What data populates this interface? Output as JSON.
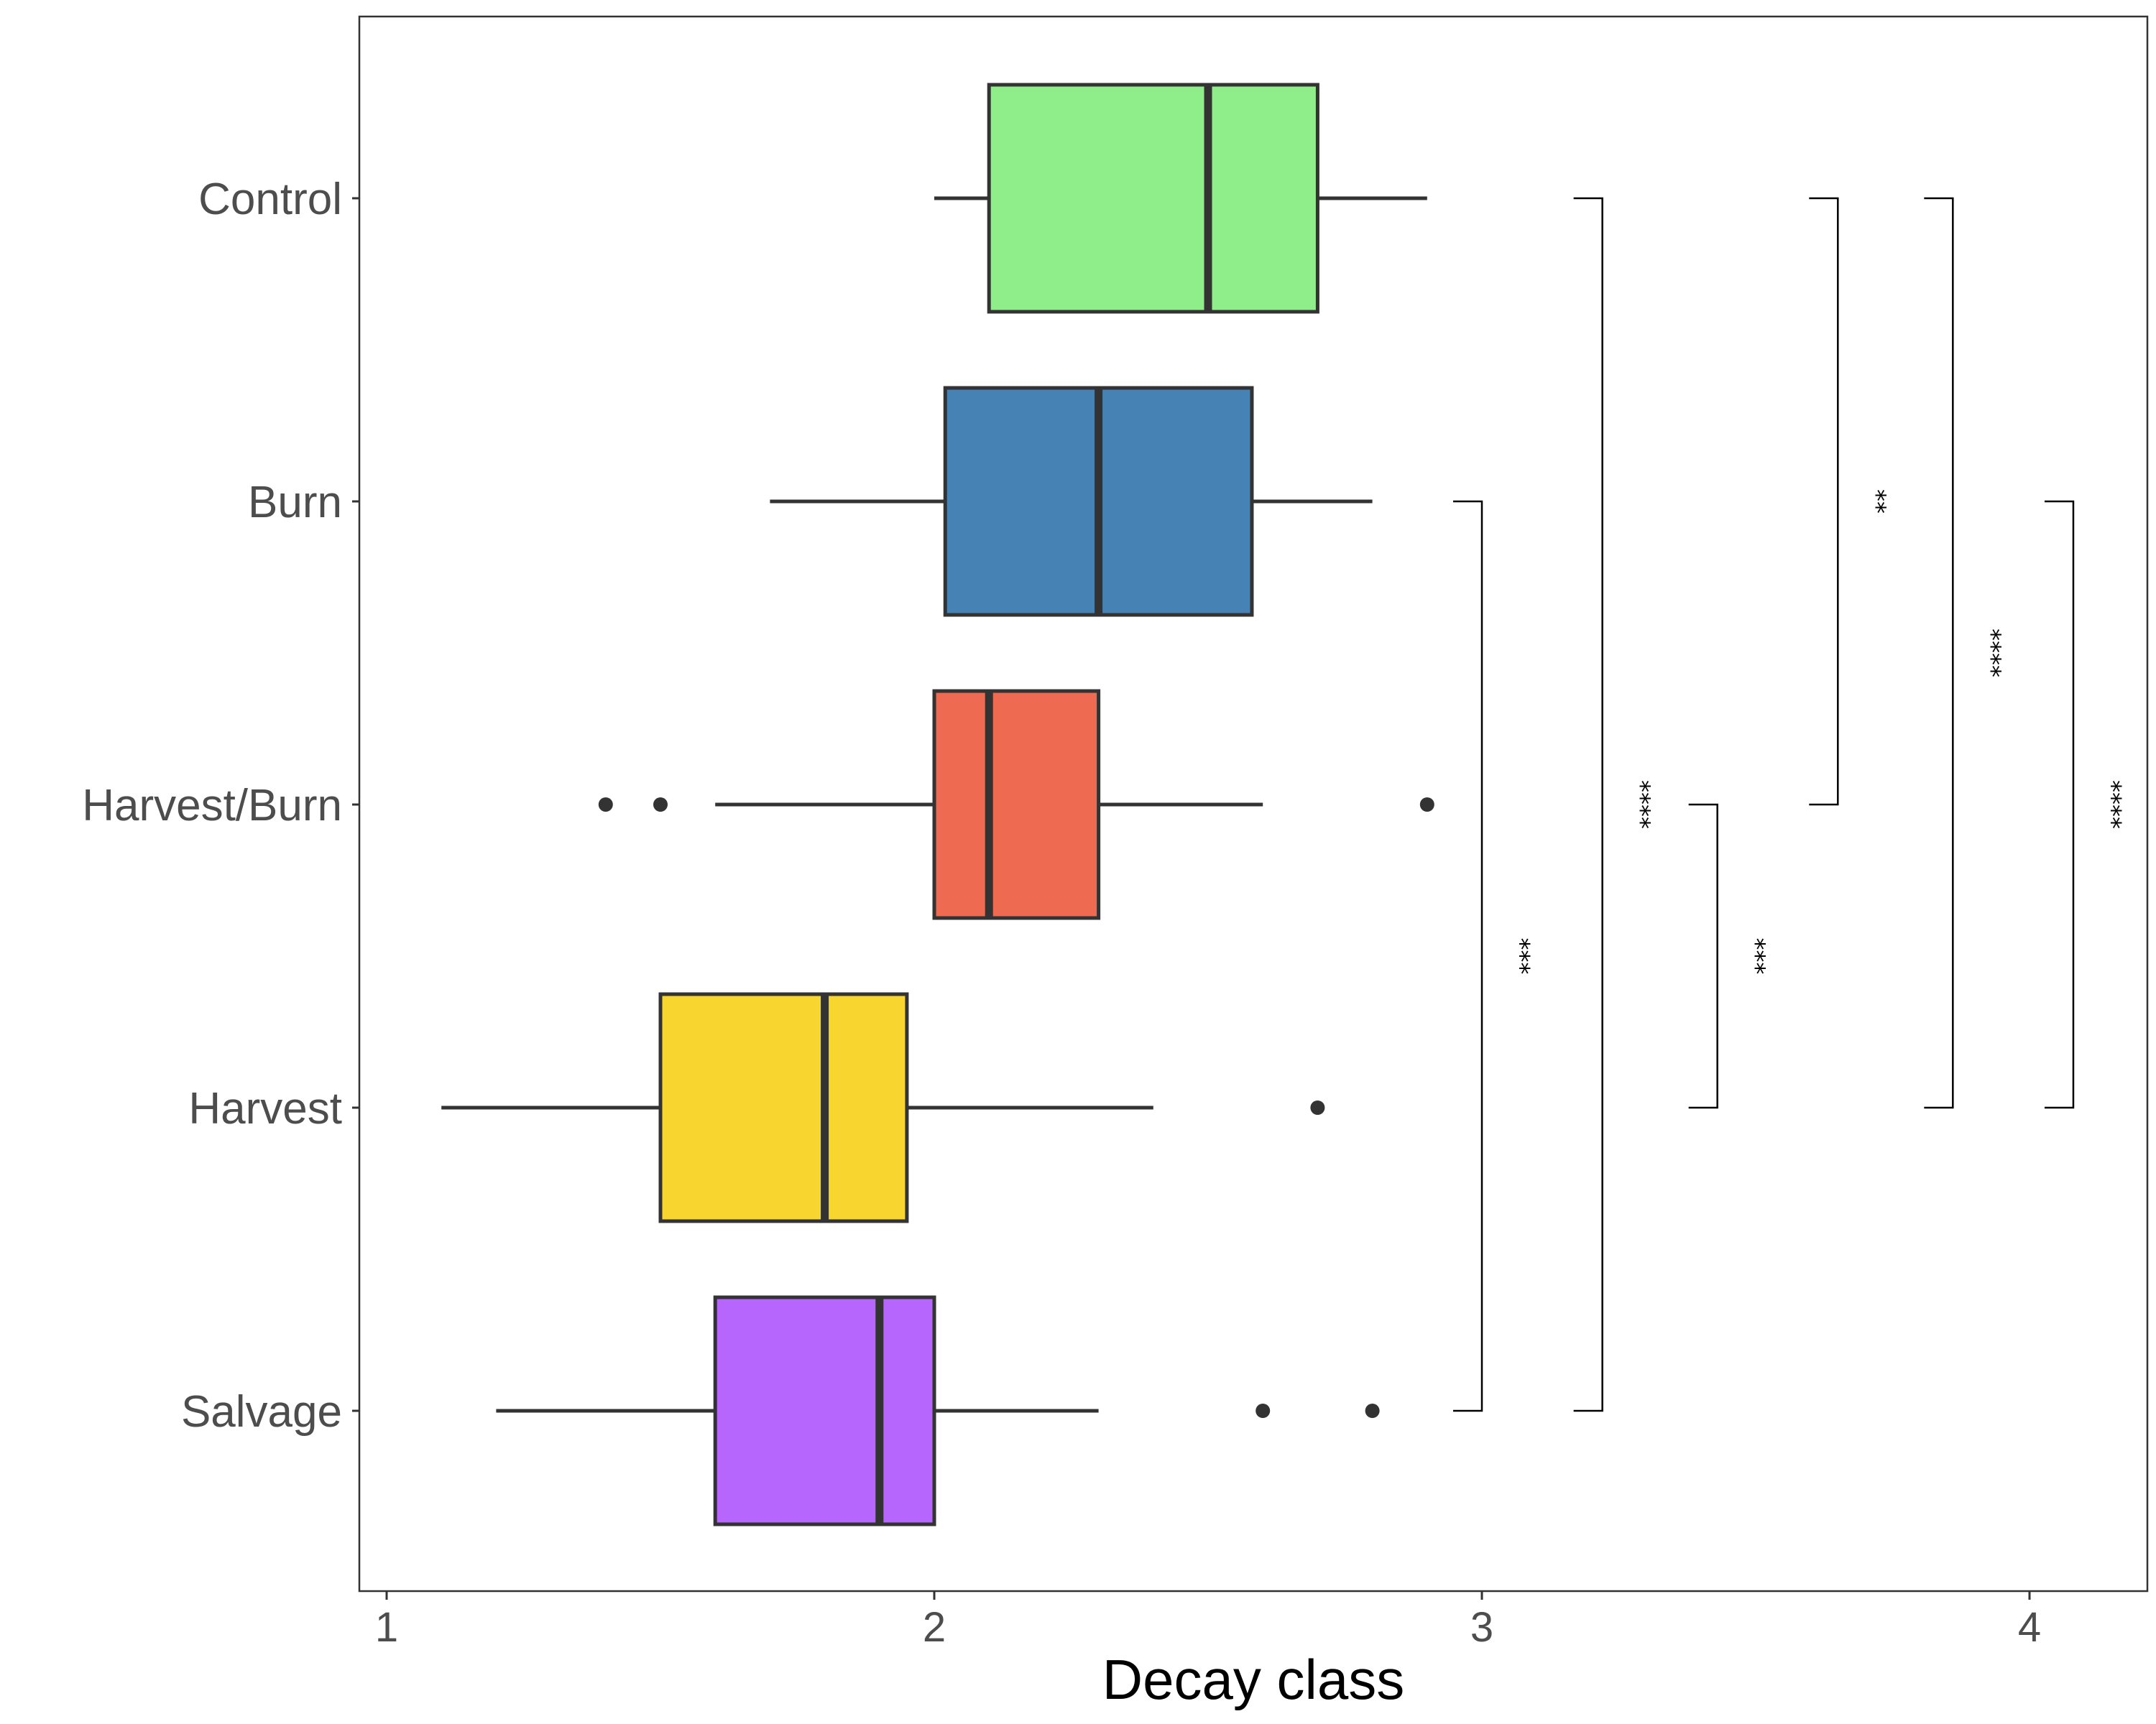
{
  "chart_data": {
    "type": "boxplot",
    "orientation": "horizontal",
    "xlabel": "Decay class",
    "ylabel": "",
    "xlim": [
      0.95,
      4.22
    ],
    "x_ticks": [
      1,
      2,
      3,
      4
    ],
    "grid": false,
    "legend": "none",
    "categories": [
      "Control",
      "Burn",
      "Harvest/Burn",
      "Harvest",
      "Salvage"
    ],
    "boxes": [
      {
        "category": "Control",
        "whisker_low": 2.0,
        "q1": 2.1,
        "median": 2.5,
        "q3": 2.7,
        "whisker_high": 2.9,
        "outliers": [],
        "color": "#90ee8a"
      },
      {
        "category": "Burn",
        "whisker_low": 1.7,
        "q1": 2.02,
        "median": 2.3,
        "q3": 2.58,
        "whisker_high": 2.8,
        "outliers": [],
        "color": "#4682b4"
      },
      {
        "category": "Harvest/Burn",
        "whisker_low": 1.6,
        "q1": 2.0,
        "median": 2.1,
        "q3": 2.3,
        "whisker_high": 2.6,
        "outliers": [
          1.4,
          1.5,
          2.9
        ],
        "color": "#ee6a50"
      },
      {
        "category": "Harvest",
        "whisker_low": 1.1,
        "q1": 1.5,
        "median": 1.8,
        "q3": 1.95,
        "whisker_high": 2.4,
        "outliers": [
          2.7
        ],
        "color": "#f8d62f"
      },
      {
        "category": "Salvage",
        "whisker_low": 1.2,
        "q1": 1.6,
        "median": 1.9,
        "q3": 2.0,
        "whisker_high": 2.3,
        "outliers": [
          2.6,
          2.8
        ],
        "color": "#b666fc"
      }
    ],
    "comparisons": [
      {
        "from": "Burn",
        "to": "Salvage",
        "x": 3.0,
        "label": "***"
      },
      {
        "from": "Control",
        "to": "Salvage",
        "x": 3.22,
        "label": "****"
      },
      {
        "from": "Harvest/Burn",
        "to": "Harvest",
        "x": 3.43,
        "label": "***"
      },
      {
        "from": "Control",
        "to": "Harvest/Burn",
        "x": 3.65,
        "label": "**"
      },
      {
        "from": "Control",
        "to": "Harvest",
        "x": 3.86,
        "label": "****"
      },
      {
        "from": "Burn",
        "to": "Harvest",
        "x": 4.08,
        "label": "****"
      }
    ]
  }
}
